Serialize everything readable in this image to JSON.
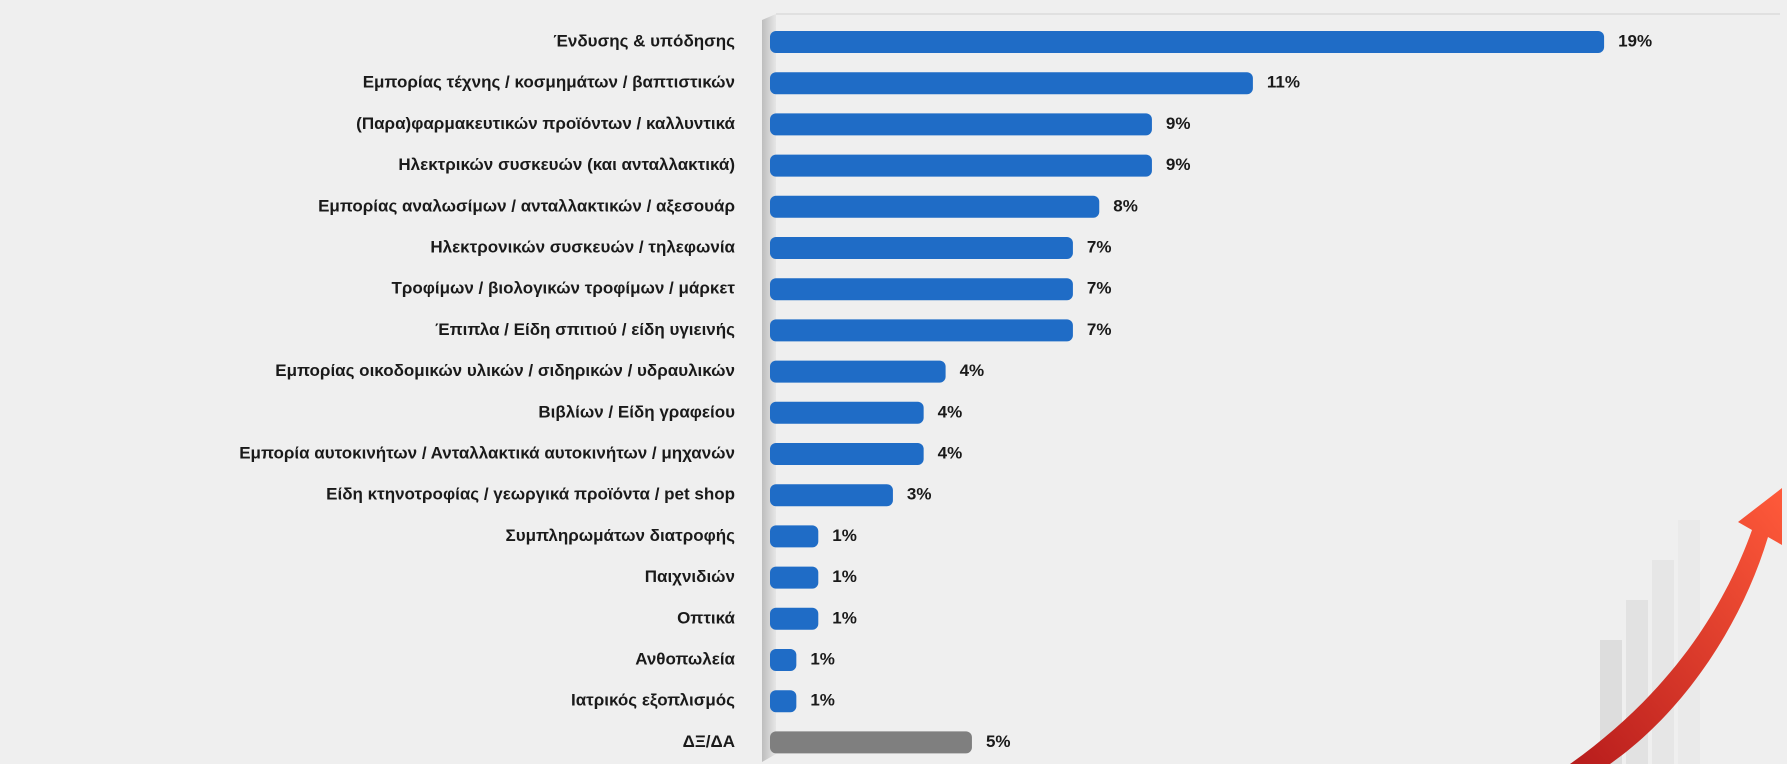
{
  "chart_data": {
    "type": "bar",
    "orientation": "horizontal",
    "categories": [
      "Ένδυσης & υπόδησης",
      "Εμπορίας τέχνης / κοσμημάτων / βαπτιστικών",
      "(Παρα)φαρμακευτικών προϊόντων / καλλυντικά",
      "Ηλεκτρικών συσκευών  (και ανταλλακτικά)",
      "Εμπορίας αναλωσίμων / ανταλλακτικών / αξεσουάρ",
      "Ηλεκτρονικών συσκευών / τηλεφωνία",
      "Τροφίμων  / βιολογικών τροφίμων / μάρκετ",
      "Έπιπλα / Είδη σπιτιού / είδη υγιεινής",
      "Εμπορίας οικοδομικών υλικών / σιδηρικών / υδραυλικών",
      "Βιβλίων / Είδη γραφείου",
      "Εμπορία αυτοκινήτων / Ανταλλακτικά αυτοκινήτων / μηχανών",
      "Είδη κτηνοτροφίας / γεωργικά προϊόντα / pet shop",
      "Συμπληρωμάτων  διατροφής",
      "Παιχνιδιών",
      "Οπτικά",
      "Ανθοπωλεία",
      "Ιατρικός εξοπλισμός",
      "ΔΞ/ΔΑ"
    ],
    "values": [
      19,
      11,
      8.7,
      8.7,
      7.5,
      6.9,
      6.9,
      6.9,
      4.0,
      3.5,
      3.5,
      2.8,
      1.1,
      1.1,
      1.1,
      0.6,
      0.6,
      4.6
    ],
    "value_labels": [
      "19%",
      "11%",
      "9%",
      "9%",
      "8%",
      "7%",
      "7%",
      "7%",
      "4%",
      "4%",
      "4%",
      "3%",
      "1%",
      "1%",
      "1%",
      "1%",
      "1%",
      "5%"
    ],
    "colors": [
      "#1f6cc6",
      "#1f6cc6",
      "#1f6cc6",
      "#1f6cc6",
      "#1f6cc6",
      "#1f6cc6",
      "#1f6cc6",
      "#1f6cc6",
      "#1f6cc6",
      "#1f6cc6",
      "#1f6cc6",
      "#1f6cc6",
      "#1f6cc6",
      "#1f6cc6",
      "#1f6cc6",
      "#1f6cc6",
      "#1f6cc6",
      "#7f7f7f"
    ]
  }
}
